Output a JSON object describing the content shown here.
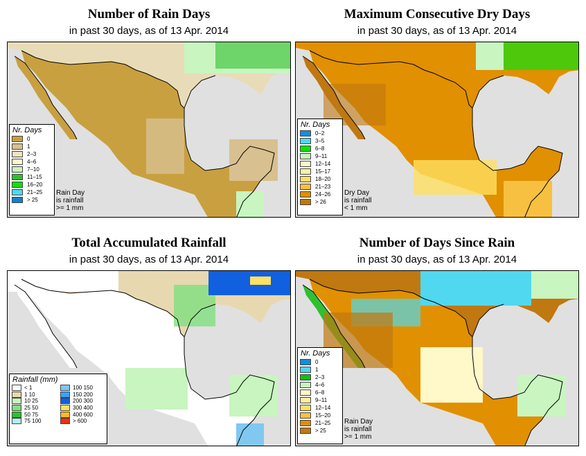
{
  "colors": {
    "background": "#ffffff",
    "water": "#e0e0e0",
    "tan_dark": "#c8a040",
    "tan": "#d8c090",
    "cream": "#f0e4c4",
    "light_yellow": "#fff8c8",
    "light_green": "#c8f5c0",
    "green": "#30c030",
    "bright_green": "#10e010",
    "cyan": "#50d8f0",
    "blue": "#1060e0",
    "orange": "#e09000",
    "dark_orange": "#c07810",
    "yellow": "#ffe060"
  },
  "panels": [
    {
      "title": "Number of Rain Days",
      "subtitle": "in past 30 days, as of  13 Apr. 2014",
      "legend_title": "Nr. Days",
      "legend": [
        {
          "label": "0",
          "color": "#c8a040"
        },
        {
          "label": "1",
          "color": "#d8c090"
        },
        {
          "label": "2–3",
          "color": "#f0e4c4"
        },
        {
          "label": "4–6",
          "color": "#fff8c8"
        },
        {
          "label": "7–10",
          "color": "#c8f5c0"
        },
        {
          "label": "11–15",
          "color": "#30c030"
        },
        {
          "label": "16–20",
          "color": "#10e010"
        },
        {
          "label": "21–25",
          "color": "#50d8f0"
        },
        {
          "label": "> 25",
          "color": "#1080d0"
        }
      ],
      "note": [
        "Rain Day",
        "is rainfall",
        ">= 1 mm"
      ]
    },
    {
      "title": "Maximum Consecutive Dry Days",
      "subtitle": "in past 30 days, as of  13 Apr. 2014",
      "legend_title": "Nr. Days",
      "legend": [
        {
          "label": "0–2",
          "color": "#1090e0"
        },
        {
          "label": "3–5",
          "color": "#50d8f0"
        },
        {
          "label": "6–8",
          "color": "#10e010"
        },
        {
          "label": "9–11",
          "color": "#c8f5c0"
        },
        {
          "label": "12–14",
          "color": "#fff8c8"
        },
        {
          "label": "15–17",
          "color": "#fff0a0"
        },
        {
          "label": "18–20",
          "color": "#ffe060"
        },
        {
          "label": "21–23",
          "color": "#f8c040"
        },
        {
          "label": "24–26",
          "color": "#e09000"
        },
        {
          "label": "> 26",
          "color": "#c07810"
        }
      ],
      "note": [
        "Dry Day",
        "is rainfall",
        "< 1 mm"
      ]
    },
    {
      "title": "Total Accumulated Rainfall",
      "subtitle": "in past 30 days, as of  13 Apr. 2014",
      "legend_title": "Rainfall (mm)",
      "legend_left": [
        {
          "label": "< 1",
          "color": "#ffffff"
        },
        {
          "label": "1    10",
          "color": "#e8d8b0"
        },
        {
          "label": "10    25",
          "color": "#c8f5c0"
        },
        {
          "label": "25    50",
          "color": "#80e080"
        },
        {
          "label": "50    75",
          "color": "#30c030"
        },
        {
          "label": "75  100",
          "color": "#b0f0f8"
        }
      ],
      "legend_right": [
        {
          "label": "100  150",
          "color": "#80c8f0"
        },
        {
          "label": "150  200",
          "color": "#40a0f0"
        },
        {
          "label": "200  300",
          "color": "#1060e0"
        },
        {
          "label": "300  400",
          "color": "#ffe060"
        },
        {
          "label": "400  600",
          "color": "#f8b830"
        },
        {
          "label": "> 600",
          "color": "#f03010"
        }
      ]
    },
    {
      "title": "Number of Days Since Rain",
      "subtitle": "in past 30 days, as of  13 Apr. 2014",
      "legend_title": "Nr. Days",
      "legend": [
        {
          "label": "0",
          "color": "#1090e0"
        },
        {
          "label": "1",
          "color": "#50d8f0"
        },
        {
          "label": "2–3",
          "color": "#10c010"
        },
        {
          "label": "4–6",
          "color": "#c8f5c0"
        },
        {
          "label": "6–8",
          "color": "#fff8c8"
        },
        {
          "label": "9–11",
          "color": "#fff0a0"
        },
        {
          "label": "12–14",
          "color": "#ffe060"
        },
        {
          "label": "15–20",
          "color": "#f8c040"
        },
        {
          "label": "21–25",
          "color": "#e09000"
        },
        {
          "label": "> 25",
          "color": "#c07810"
        }
      ],
      "note": [
        "Rain Day",
        "is rainfall",
        ">= 1 mm"
      ]
    }
  ]
}
